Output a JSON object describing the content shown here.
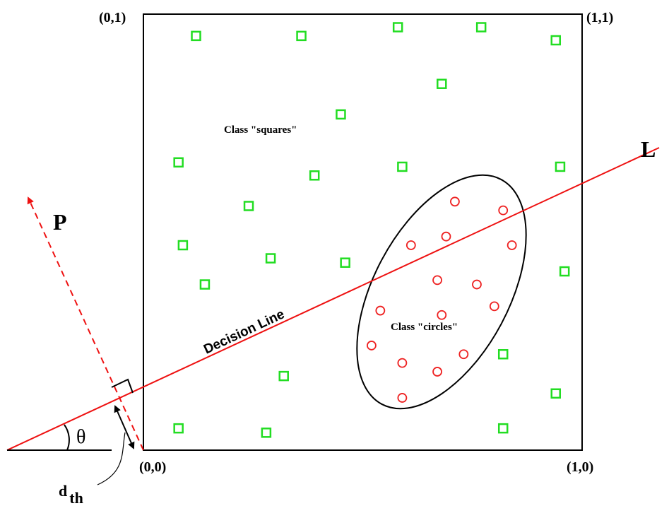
{
  "corners": {
    "top_left": "(0,1)",
    "top_right": "(1,1)",
    "bottom_left": "(0,0)",
    "bottom_right": "(1,0)"
  },
  "labels": {
    "class_squares": "Class \"squares\"",
    "class_circles": "Class \"circles\"",
    "decision_line": "Decision Line",
    "line_L": "L",
    "projection_P": "P",
    "angle": "θ",
    "distance_base": "d",
    "distance_sub": "th"
  },
  "colors": {
    "squares": "#22dd22",
    "circles": "#ee2222",
    "decision_line": "#ee1111",
    "projection": "#ee1111",
    "frame": "#000000"
  },
  "squares": [
    [
      0.12,
      0.95
    ],
    [
      0.36,
      0.95
    ],
    [
      0.58,
      0.97
    ],
    [
      0.77,
      0.97
    ],
    [
      0.94,
      0.94
    ],
    [
      0.68,
      0.84
    ],
    [
      0.45,
      0.77
    ],
    [
      0.08,
      0.66
    ],
    [
      0.39,
      0.63
    ],
    [
      0.59,
      0.65
    ],
    [
      0.95,
      0.65
    ],
    [
      0.24,
      0.56
    ],
    [
      0.09,
      0.47
    ],
    [
      0.29,
      0.44
    ],
    [
      0.46,
      0.43
    ],
    [
      0.96,
      0.41
    ],
    [
      0.14,
      0.38
    ],
    [
      0.82,
      0.22
    ],
    [
      0.32,
      0.17
    ],
    [
      0.94,
      0.13
    ],
    [
      0.08,
      0.05
    ],
    [
      0.28,
      0.04
    ],
    [
      0.82,
      0.05
    ]
  ],
  "circles": [
    [
      0.71,
      0.57
    ],
    [
      0.82,
      0.55
    ],
    [
      0.69,
      0.49
    ],
    [
      0.61,
      0.47
    ],
    [
      0.84,
      0.47
    ],
    [
      0.67,
      0.39
    ],
    [
      0.76,
      0.38
    ],
    [
      0.54,
      0.32
    ],
    [
      0.68,
      0.31
    ],
    [
      0.8,
      0.33
    ],
    [
      0.52,
      0.24
    ],
    [
      0.73,
      0.22
    ],
    [
      0.59,
      0.2
    ],
    [
      0.67,
      0.18
    ],
    [
      0.59,
      0.12
    ]
  ]
}
